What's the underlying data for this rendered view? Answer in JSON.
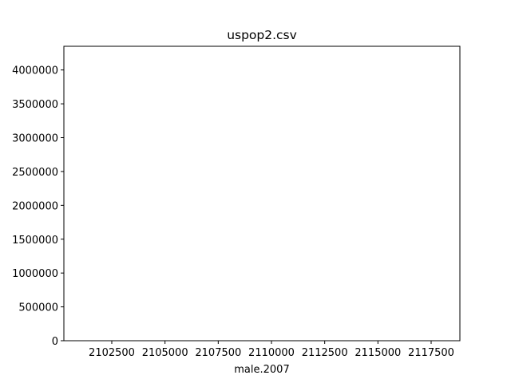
{
  "chart_data": {
    "type": "bar",
    "title": "uspop2.csv",
    "xlabel": "male.2007",
    "ylabel": "",
    "xlim": [
      2100250,
      2118850
    ],
    "ylim": [
      0,
      4350000
    ],
    "x_ticks": [
      2102500,
      2105000,
      2107500,
      2110000,
      2112500,
      2115000,
      2117500
    ],
    "x_tick_labels": [
      "2102500",
      "2105000",
      "2107500",
      "2110000",
      "2112500",
      "2115000",
      "2117500"
    ],
    "y_ticks": [
      0,
      500000,
      1000000,
      1500000,
      2000000,
      2500000,
      3000000,
      3500000,
      4000000
    ],
    "y_tick_labels": [
      "0",
      "500000",
      "1000000",
      "1500000",
      "2000000",
      "2500000",
      "3000000",
      "3500000",
      "4000000"
    ],
    "series": [],
    "grid": false,
    "legend": "none"
  },
  "colors": {
    "background": "#ffffff",
    "axes": "#000000"
  }
}
